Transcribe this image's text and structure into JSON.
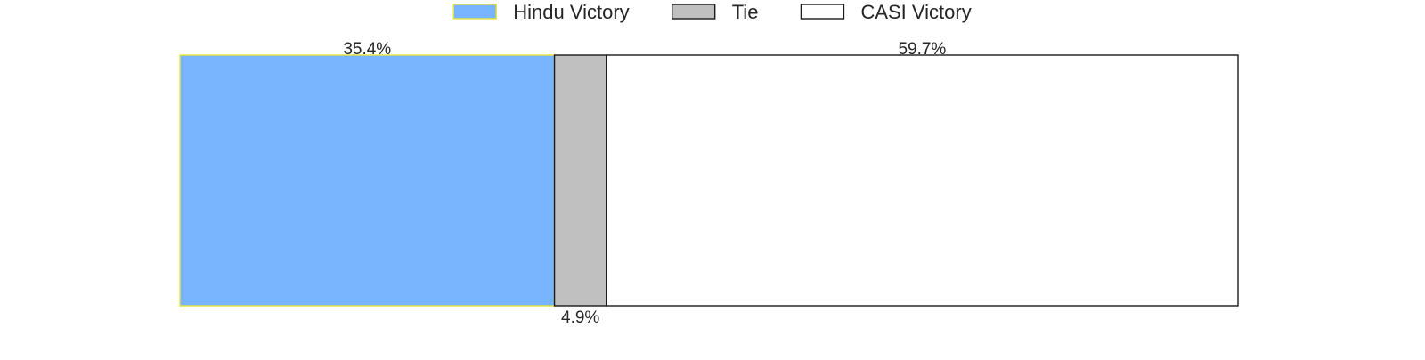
{
  "chart_data": {
    "type": "bar",
    "orientation": "horizontal",
    "stacked": true,
    "normalized": true,
    "title": "",
    "xlabel": "",
    "ylabel": "",
    "xlim": [
      0,
      100
    ],
    "grid": false,
    "axes_visible": false,
    "legend_position": "top-center",
    "series": [
      {
        "name": "Hindu Victory",
        "value": 35.4,
        "label": "35.4%",
        "color": "#78b4ff",
        "edge_color": "#e6e632",
        "label_position": "above"
      },
      {
        "name": "Tie",
        "value": 4.9,
        "label": "4.9%",
        "color": "#c0c0c0",
        "edge_color": "#1a1a1a",
        "label_position": "below"
      },
      {
        "name": "CASI Victory",
        "value": 59.7,
        "label": "59.7%",
        "color": "#ffffff",
        "edge_color": "#1a1a1a",
        "label_position": "above"
      }
    ]
  }
}
